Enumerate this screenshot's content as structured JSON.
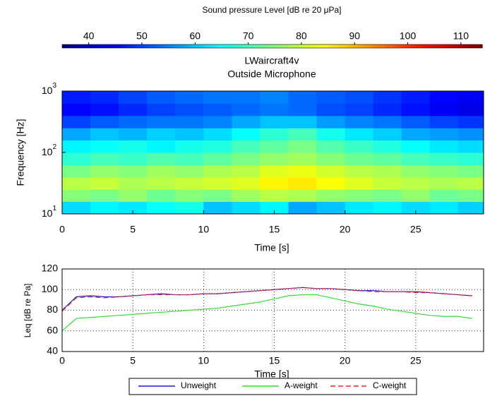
{
  "chart_data": [
    {
      "type": "heatmap",
      "title": [
        "LWaircraft4v",
        "Outside Microphone"
      ],
      "xlabel": "Time   [s]",
      "ylabel": "Frequency   [Hz]",
      "colormap": "jet",
      "ylog": true,
      "colorbar": {
        "title": "Sound pressure Level   [dB  re  20 μPa]",
        "clim": [
          35,
          114
        ],
        "ticks": [
          40,
          50,
          60,
          70,
          80,
          90,
          100,
          110
        ]
      },
      "x": [
        1,
        3,
        5,
        7,
        9,
        11,
        13,
        15,
        17,
        19,
        21,
        23,
        25,
        27,
        29
      ],
      "y": [
        12.6,
        20,
        31.6,
        50,
        79,
        126,
        200,
        316,
        501,
        794
      ],
      "values": [
        [
          62,
          64,
          63,
          65,
          66,
          60,
          62,
          64,
          58,
          60,
          63,
          64,
          62,
          63,
          61
        ],
        [
          75,
          74,
          76,
          73,
          75,
          74,
          77,
          79,
          78,
          76,
          75,
          74,
          76,
          73,
          74
        ],
        [
          79,
          80,
          78,
          79,
          80,
          81,
          82,
          85,
          86,
          84,
          82,
          80,
          79,
          78,
          79
        ],
        [
          74,
          76,
          75,
          77,
          76,
          78,
          79,
          82,
          83,
          81,
          79,
          78,
          76,
          75,
          74
        ],
        [
          68,
          70,
          69,
          71,
          70,
          72,
          74,
          76,
          77,
          75,
          73,
          72,
          70,
          69,
          68
        ],
        [
          64,
          65,
          66,
          64,
          66,
          67,
          70,
          72,
          74,
          71,
          69,
          67,
          65,
          63,
          62
        ],
        [
          58,
          60,
          59,
          61,
          60,
          62,
          65,
          68,
          70,
          66,
          63,
          61,
          58,
          57,
          56
        ],
        [
          50,
          52,
          53,
          54,
          54,
          55,
          58,
          60,
          60,
          57,
          55,
          54,
          52,
          50,
          49
        ],
        [
          45,
          46,
          48,
          50,
          51,
          52,
          53,
          54,
          53,
          51,
          50,
          48,
          46,
          44,
          43
        ],
        [
          47,
          48,
          50,
          52,
          53,
          54,
          54,
          55,
          53,
          52,
          51,
          49,
          47,
          45,
          44
        ]
      ],
      "xlim": [
        0,
        29.8
      ],
      "xticks": [
        0,
        5,
        10,
        15,
        20,
        25
      ],
      "ylim": [
        10,
        1000
      ],
      "yticks": [
        {
          "value": 10,
          "label": "10^1"
        },
        {
          "value": 100,
          "label": "10^2"
        },
        {
          "value": 1000,
          "label": "10^3"
        }
      ]
    },
    {
      "type": "line",
      "xlabel": "Time   [s]",
      "ylabel": "Leq   [dB re Pa]",
      "grid": true,
      "legend": "bottom-outside",
      "x": [
        0,
        1,
        2,
        3,
        4,
        5,
        6,
        7,
        8,
        9,
        10,
        11,
        12,
        13,
        14,
        15,
        16,
        17,
        18,
        19,
        20,
        21,
        22,
        23,
        24,
        25,
        26,
        27,
        28,
        29
      ],
      "series": [
        {
          "name": "Unweight",
          "color": "#1a1acc",
          "dash": false,
          "values": [
            80,
            93,
            94,
            93,
            93,
            94,
            95,
            96,
            95,
            95,
            96,
            96,
            97,
            98,
            99,
            100,
            101,
            102,
            101,
            101,
            100,
            99,
            99,
            98,
            98,
            98,
            97,
            96,
            95,
            94
          ]
        },
        {
          "name": "A-weight",
          "color": "#33dd33",
          "dash": false,
          "values": [
            60,
            72,
            73,
            74,
            75,
            76,
            77,
            78,
            79,
            80,
            81,
            82,
            84,
            86,
            88,
            91,
            94,
            95,
            95,
            92,
            89,
            86,
            84,
            81,
            79,
            77,
            75,
            74,
            74,
            72
          ]
        },
        {
          "name": "C-weight",
          "color": "#ee2222",
          "dash": true,
          "values": [
            79,
            92,
            93,
            92,
            93,
            94,
            95,
            95,
            95,
            95,
            96,
            96,
            97,
            98,
            99,
            100,
            101,
            102,
            101,
            101,
            100,
            99,
            98,
            98,
            98,
            97,
            97,
            96,
            95,
            94
          ]
        }
      ],
      "xlim": [
        0,
        29.8
      ],
      "xticks": [
        0,
        5,
        10,
        15,
        20,
        25
      ],
      "ylim": [
        40,
        120
      ],
      "yticks": [
        40,
        60,
        80,
        100,
        120
      ]
    }
  ]
}
